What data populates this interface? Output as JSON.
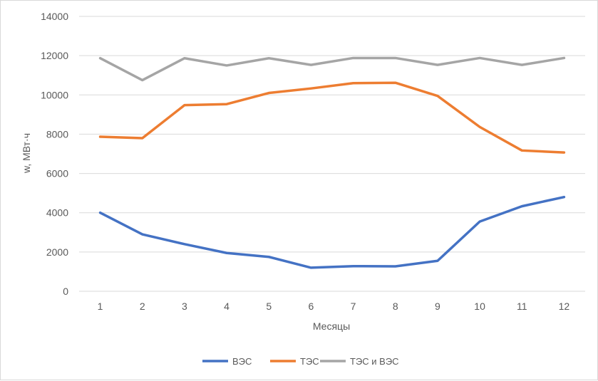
{
  "chart_data": {
    "type": "line",
    "title": "",
    "xlabel": "Месяцы",
    "ylabel": "w, МВт·ч",
    "categories": [
      "1",
      "2",
      "3",
      "4",
      "5",
      "6",
      "7",
      "8",
      "9",
      "10",
      "11",
      "12"
    ],
    "ylim": [
      0,
      14000
    ],
    "yticks": [
      "0",
      "2000",
      "4000",
      "6000",
      "8000",
      "10000",
      "12000",
      "14000"
    ],
    "grid": true,
    "legend_position": "bottom",
    "series": [
      {
        "name": "ВЭС",
        "color": "#4472C4",
        "values": [
          4000,
          2900,
          2400,
          1950,
          1750,
          1200,
          1280,
          1270,
          1550,
          3550,
          4330,
          4800
        ]
      },
      {
        "name": "ТЭС",
        "color": "#ED7D31",
        "values": [
          7870,
          7800,
          9480,
          9530,
          10100,
          10330,
          10600,
          10620,
          9950,
          8370,
          7170,
          7070
        ]
      },
      {
        "name": "ТЭС и ВЭС",
        "color": "#A5A5A5",
        "values": [
          11870,
          10750,
          11870,
          11500,
          11870,
          11530,
          11880,
          11880,
          11530,
          11880,
          11530,
          11880
        ]
      }
    ]
  }
}
